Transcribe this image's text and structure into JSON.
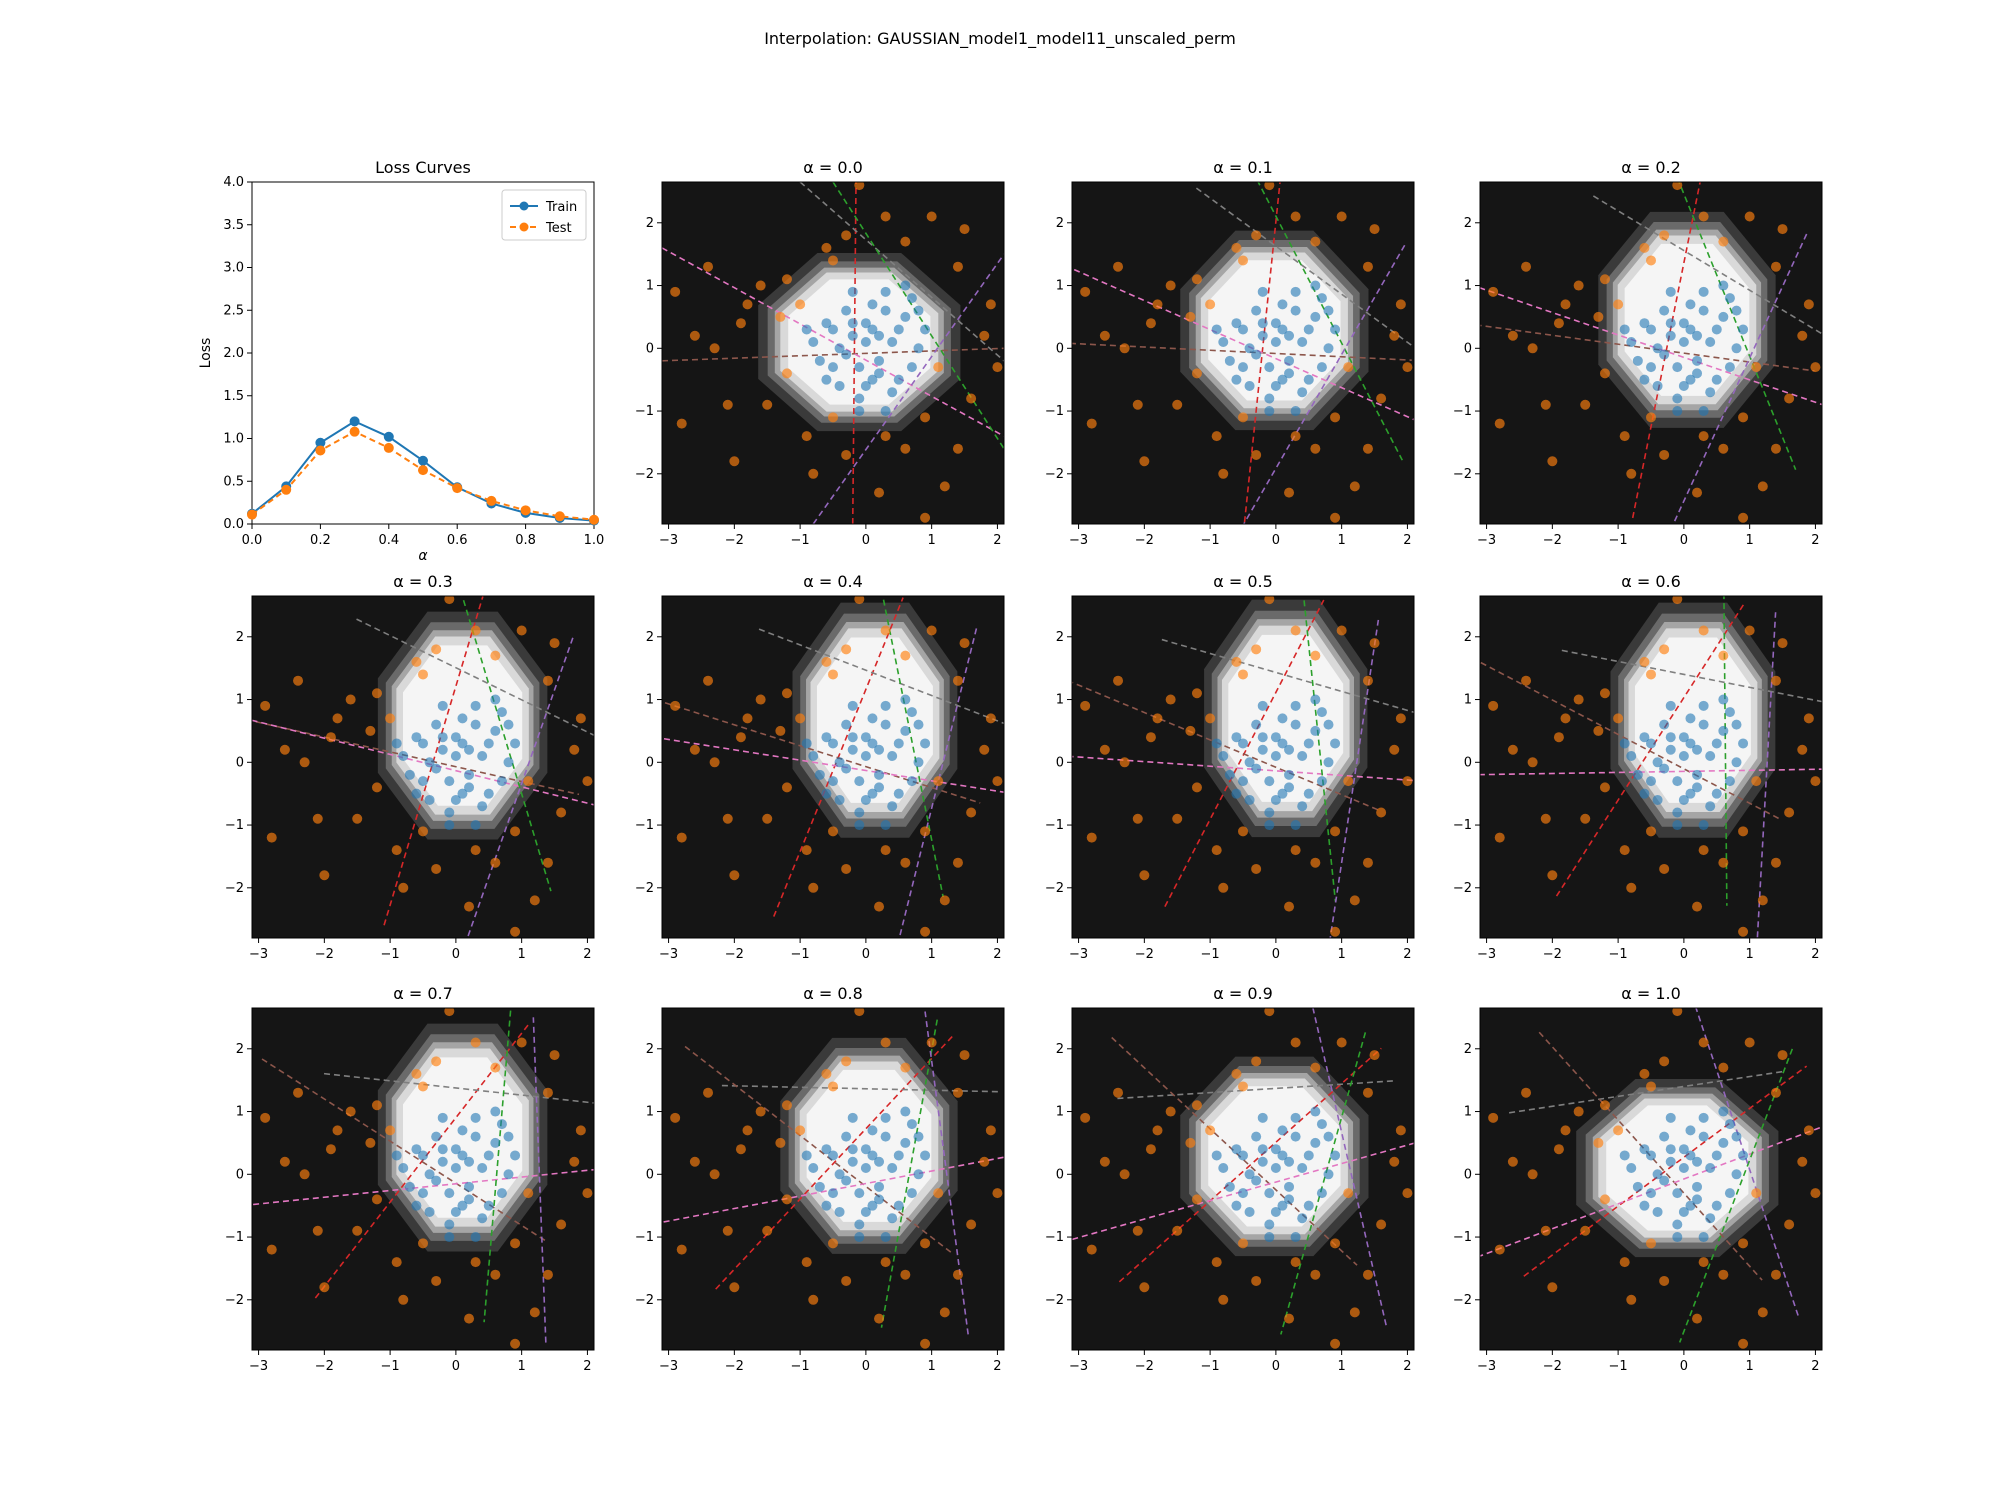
{
  "suptitle": "Interpolation: GAUSSIAN_model1_model11_unscaled_perm",
  "colors": {
    "train": "#1f77b4",
    "test": "#ff7f0e",
    "background": "#151515",
    "region_light": "#f5f5f5",
    "boundaries": [
      "#d62728",
      "#7f7f7f",
      "#8c564b",
      "#e377c2",
      "#2ca02c",
      "#9467bd"
    ]
  },
  "chart_data": [
    {
      "type": "line",
      "title": "Loss Curves",
      "xlabel": "α",
      "ylabel": "Loss",
      "xlim": [
        0.0,
        1.0
      ],
      "ylim": [
        0.0,
        4.0
      ],
      "x_ticks": [
        "0.0",
        "0.2",
        "0.4",
        "0.6",
        "0.8",
        "1.0"
      ],
      "y_ticks": [
        "0.0",
        "0.5",
        "1.0",
        "1.5",
        "2.0",
        "2.5",
        "3.0",
        "3.5",
        "4.0"
      ],
      "legend": "top-right",
      "x": [
        0.0,
        0.1,
        0.2,
        0.3,
        0.4,
        0.5,
        0.6,
        0.7,
        0.8,
        0.9,
        1.0
      ],
      "series": [
        {
          "name": "Train",
          "values": [
            0.12,
            0.44,
            0.95,
            1.2,
            1.02,
            0.74,
            0.43,
            0.24,
            0.13,
            0.07,
            0.04
          ]
        },
        {
          "name": "Test",
          "values": [
            0.11,
            0.4,
            0.86,
            1.08,
            0.89,
            0.63,
            0.42,
            0.27,
            0.16,
            0.09,
            0.05
          ]
        }
      ]
    },
    {
      "type": "scatter",
      "panel_titles": [
        "α = 0.0",
        "α = 0.1",
        "α = 0.2",
        "α = 0.3",
        "α = 0.4",
        "α = 0.5",
        "α = 0.6",
        "α = 0.7",
        "α = 0.8",
        "α = 0.9",
        "α = 1.0"
      ],
      "xlim": [
        -3.1,
        2.1
      ],
      "ylim": [
        -2.8,
        2.65
      ],
      "x_ticks": [
        "−3",
        "−2",
        "−1",
        "0",
        "1",
        "2"
      ],
      "y_ticks": [
        "−2",
        "−1",
        "0",
        "1",
        "2"
      ],
      "inner_points": [
        [
          -0.2,
          0.4
        ],
        [
          0.1,
          0.3
        ],
        [
          -0.5,
          0.3
        ],
        [
          0.4,
          0.1
        ],
        [
          -0.6,
          0.4
        ],
        [
          0.6,
          0.5
        ],
        [
          0.8,
          0.0
        ],
        [
          0.2,
          -0.2
        ],
        [
          0.5,
          -0.5
        ],
        [
          -0.3,
          -0.1
        ],
        [
          -0.1,
          -0.3
        ],
        [
          0.3,
          0.6
        ],
        [
          -0.8,
          0.1
        ],
        [
          0.0,
          0.1
        ],
        [
          0.7,
          -0.3
        ],
        [
          -0.4,
          -0.6
        ],
        [
          -0.1,
          -0.8
        ],
        [
          0.9,
          0.3
        ],
        [
          -0.2,
          0.9
        ],
        [
          0.1,
          -0.5
        ],
        [
          0.3,
          0.9
        ],
        [
          -0.5,
          -0.3
        ],
        [
          0.4,
          -0.7
        ],
        [
          0.6,
          1.0
        ],
        [
          -0.3,
          0.6
        ],
        [
          0.1,
          0.7
        ],
        [
          0.2,
          0.2
        ],
        [
          -0.7,
          -0.2
        ],
        [
          0.5,
          0.3
        ],
        [
          -0.1,
          -1.0
        ],
        [
          0.0,
          -0.6
        ],
        [
          0.8,
          0.6
        ],
        [
          -0.9,
          0.3
        ],
        [
          0.3,
          -1.0
        ],
        [
          -0.4,
          0.0
        ],
        [
          0.7,
          0.8
        ],
        [
          -0.2,
          0.2
        ],
        [
          0.2,
          -0.4
        ],
        [
          -0.6,
          -0.5
        ],
        [
          0.0,
          0.4
        ]
      ],
      "outer_points": [
        [
          -2.9,
          0.9
        ],
        [
          -2.4,
          1.3
        ],
        [
          -1.8,
          0.7
        ],
        [
          -1.2,
          1.1
        ],
        [
          -0.6,
          1.6
        ],
        [
          -0.5,
          1.4
        ],
        [
          0.3,
          2.1
        ],
        [
          1.0,
          2.1
        ],
        [
          1.4,
          1.3
        ],
        [
          1.9,
          0.7
        ],
        [
          2.0,
          -0.3
        ],
        [
          1.6,
          -0.8
        ],
        [
          1.4,
          -1.6
        ],
        [
          0.9,
          -1.1
        ],
        [
          0.3,
          -1.4
        ],
        [
          -0.3,
          -1.7
        ],
        [
          -0.9,
          -1.4
        ],
        [
          -1.5,
          -0.9
        ],
        [
          -2.1,
          -0.9
        ],
        [
          -2.8,
          -1.2
        ],
        [
          -2.6,
          0.2
        ],
        [
          -1.9,
          0.4
        ],
        [
          -2.3,
          0.0
        ],
        [
          -1.2,
          -0.4
        ],
        [
          -0.5,
          -1.1
        ],
        [
          0.6,
          -1.6
        ],
        [
          1.1,
          -0.3
        ],
        [
          -0.1,
          2.6
        ],
        [
          -1.0,
          0.7
        ],
        [
          1.8,
          0.2
        ],
        [
          0.9,
          -2.7
        ],
        [
          -1.6,
          1.0
        ],
        [
          0.6,
          1.7
        ],
        [
          -0.8,
          -2.0
        ],
        [
          1.2,
          -2.2
        ],
        [
          -0.3,
          1.8
        ],
        [
          -2.0,
          -1.8
        ],
        [
          1.5,
          1.9
        ],
        [
          -1.3,
          0.5
        ],
        [
          0.2,
          -2.3
        ]
      ]
    }
  ]
}
